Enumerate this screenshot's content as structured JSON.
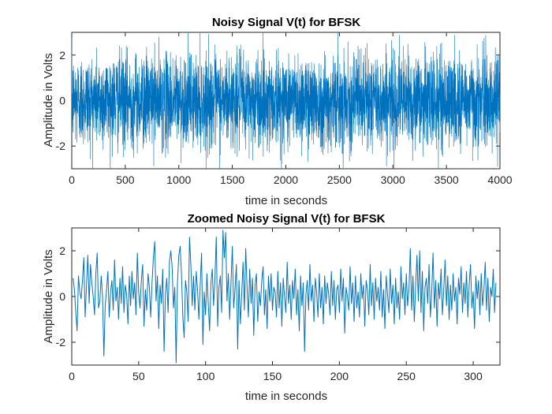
{
  "colors": {
    "series": "#0072BD",
    "axes": "#262626",
    "background": "#ffffff"
  },
  "chart_data": [
    {
      "type": "line",
      "title": "Noisy Signal V(t) for BFSK",
      "xlabel": "time in seconds",
      "ylabel": "Amplitude in Volts",
      "xlim": [
        0,
        4000
      ],
      "ylim": [
        -3,
        3
      ],
      "xticks": [
        0,
        500,
        1000,
        1500,
        2000,
        2500,
        3000,
        3500,
        4000
      ],
      "xtick_labels": [
        "0",
        "500",
        "1000",
        "1500",
        "2000",
        "2500",
        "3000",
        "3500",
        "4000"
      ],
      "yticks": [
        -2,
        0,
        2
      ],
      "ytick_labels": [
        "-2",
        "0",
        "2"
      ],
      "grid": false,
      "series": [
        {
          "color": "#0072BD",
          "samples": 4000,
          "x_range": [
            1,
            4000
          ],
          "mean": 0,
          "std_dev": 1,
          "approx_range": [
            -3,
            3
          ],
          "description_values_note": "dense Gaussian noise, clipped to the y-axis range"
        }
      ]
    },
    {
      "type": "line",
      "title": "Zoomed Noisy Signal V(t) for BFSK",
      "xlabel": "time in seconds",
      "ylabel": "Amplitude in Volts",
      "xlim": [
        0,
        320
      ],
      "ylim": [
        -3,
        3
      ],
      "xticks": [
        0,
        50,
        100,
        150,
        200,
        250,
        300
      ],
      "xtick_labels": [
        "0",
        "50",
        "100",
        "150",
        "200",
        "250",
        "300"
      ],
      "yticks": [
        -2,
        0,
        2
      ],
      "ytick_labels": [
        "-2",
        "0",
        "2"
      ],
      "grid": false,
      "series": [
        {
          "color": "#0072BD",
          "x_start": 1,
          "x_step": 1,
          "y": [
            0.8,
            0.3,
            -0.7,
            -1.5,
            0.9,
            0.2,
            -0.1,
            0.7,
            1.7,
            -0.9,
            0.5,
            1.8,
            -0.3,
            1.4,
            0.6,
            0.0,
            -0.8,
            1.0,
            1.9,
            -0.5,
            -0.2,
            0.9,
            0.0,
            -2.6,
            -0.4,
            0.3,
            1.1,
            -0.9,
            0.2,
            0.7,
            -0.6,
            1.6,
            -0.2,
            0.4,
            -1.0,
            0.8,
            -0.3,
            1.3,
            -0.7,
            0.5,
            0.1,
            -1.2,
            0.9,
            -0.4,
            1.1,
            -0.1,
            0.6,
            -0.8,
            1.9,
            0.2,
            -0.5,
            0.7,
            1.4,
            -1.3,
            0.3,
            -0.6,
            1.0,
            0.4,
            -0.9,
            0.6,
            1.7,
            2.4,
            -0.2,
            0.9,
            -1.4,
            0.5,
            -0.3,
            1.2,
            -2.4,
            0.1,
            0.8,
            -0.7,
            1.5,
            2.0,
            1.3,
            -0.5,
            0.4,
            -2.9,
            0.6,
            1.8,
            2.2,
            1.0,
            -0.9,
            -1.8,
            0.7,
            0.2,
            -1.1,
            2.6,
            1.4,
            -0.4,
            0.9,
            -0.6,
            1.1,
            0.3,
            -1.0,
            0.5,
            1.9,
            -2.1,
            0.2,
            -0.8,
            1.0,
            -0.3,
            -1.5,
            0.6,
            1.2,
            -0.4,
            0.8,
            2.6,
            -1.3,
            0.4,
            0.9,
            -0.7,
            2.9,
            1.7,
            2.8,
            -0.2,
            1.0,
            -1.0,
            0.6,
            2.2,
            -0.5,
            0.3,
            1.4,
            -2.3,
            0.7,
            -1.2,
            0.1,
            1.5,
            -0.6,
            2.1,
            0.4,
            -0.9,
            1.2,
            -0.3,
            0.8,
            -1.7,
            0.5,
            1.0,
            -1.1,
            0.2,
            -0.4,
            0.7,
            1.3,
            -0.8,
            0.3,
            -1.4,
            0.9,
            -0.2,
            1.0,
            -0.6,
            0.4,
            0.2,
            -0.9,
            1.1,
            -0.5,
            0.6,
            -1.3,
            0.8,
            0.0,
            -0.7,
            1.5,
            -0.3,
            0.5,
            -1.0,
            0.7,
            -0.1,
            1.2,
            -0.8,
            0.3,
            -1.5,
            0.9,
            -0.4,
            0.6,
            -2.4,
            0.1,
            0.7,
            -0.6,
            1.4,
            -0.2,
            0.5,
            -1.1,
            0.8,
            0.2,
            -0.9,
            1.0,
            -0.5,
            0.4,
            -1.2,
            0.9,
            -0.3,
            0.6,
            0.1,
            -0.8,
            1.1,
            -0.4,
            0.7,
            -1.0,
            0.3,
            0.5,
            -0.7,
            1.2,
            -0.2,
            0.8,
            -1.6,
            0.4,
            0.0,
            -0.6,
            1.3,
            -0.3,
            0.6,
            -1.1,
            0.9,
            -0.5,
            0.2,
            -0.9,
            1.0,
            -0.1,
            0.5,
            -1.3,
            0.7,
            0.3,
            -0.8,
            1.4,
            -0.4,
            0.6,
            -1.0,
            0.8,
            -0.2,
            0.4,
            -0.6,
            1.1,
            -0.9,
            0.3,
            -1.4,
            0.9,
            0.1,
            -0.7,
            1.2,
            -0.3,
            0.5,
            -1.2,
            0.8,
            -0.5,
            0.2,
            -1.0,
            1.3,
            -0.1,
            0.6,
            -0.8,
            1.0,
            -0.4,
            0.3,
            2.1,
            -0.6,
            0.9,
            -1.1,
            0.5,
            1.8,
            -0.2,
            2.0,
            -0.7,
            1.1,
            -1.5,
            0.4,
            0.8,
            -0.3,
            1.4,
            -0.9,
            0.2,
            1.9,
            -0.5,
            0.7,
            -1.3,
            0.6,
            -0.1,
            1.2,
            -0.8,
            0.3,
            1.6,
            -0.4,
            0.9,
            -1.0,
            0.5,
            -0.6,
            1.0,
            -0.2,
            0.4,
            -1.2,
            0.8,
            0.1,
            1.3,
            -0.7,
            0.6,
            -0.3,
            1.1,
            -0.9,
            0.5,
            1.4,
            -0.5,
            0.2,
            -1.4,
            0.9,
            -0.1,
            0.7,
            -0.8,
            1.0,
            -0.4,
            0.3,
            1.5,
            -0.6,
            0.8,
            -1.1,
            0.4,
            0.0,
            1.2,
            -0.7,
            0.6
          ]
        }
      ]
    }
  ]
}
